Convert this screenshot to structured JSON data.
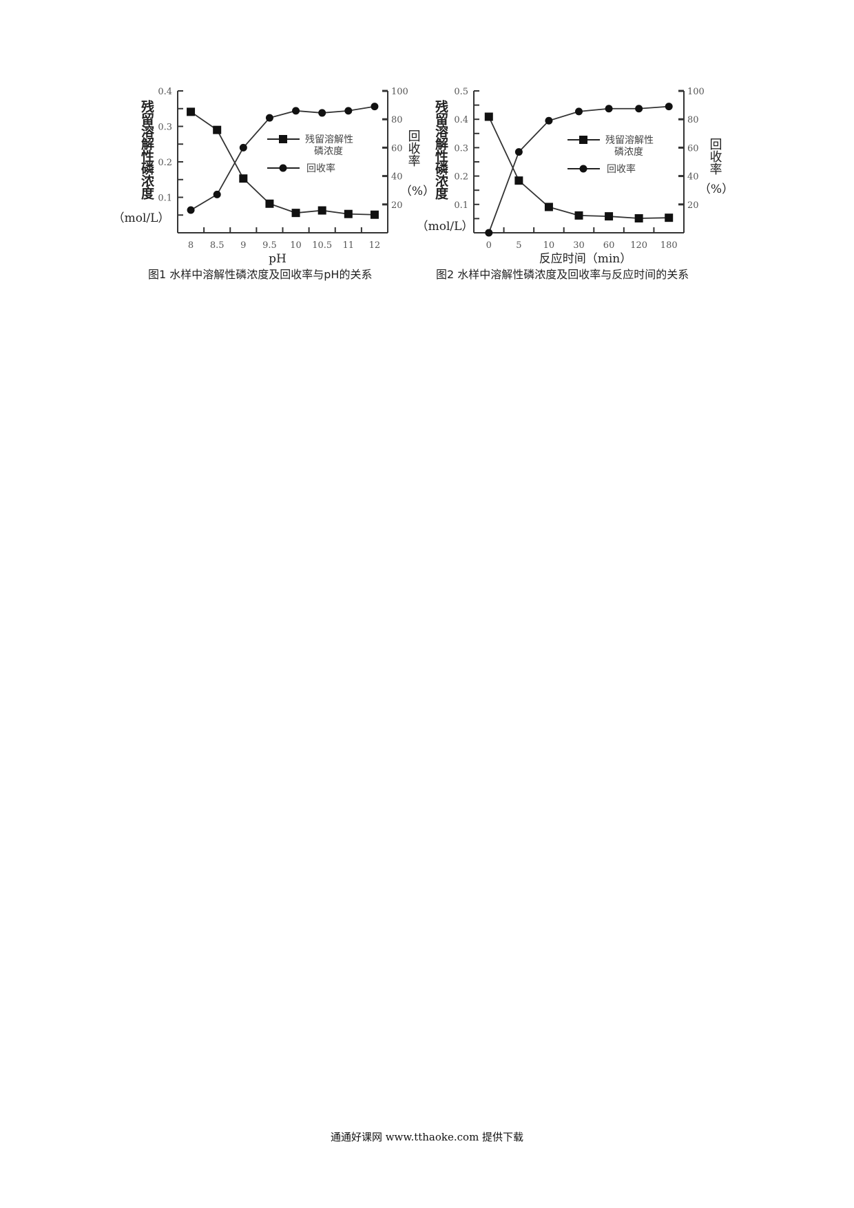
{
  "chart_data": [
    {
      "type": "line",
      "caption": "图1 水样中溶解性磷浓度及回收率与pH的关系",
      "xlabel": "pH",
      "ylabel": "残留溶解性磷浓度",
      "ylabel_unit": "（mol/L）",
      "y2label": "回收率",
      "y2label_unit": "（%）",
      "categories": [
        "8",
        "8.5",
        "9",
        "9.5",
        "10",
        "10.5",
        "11",
        "12"
      ],
      "ylim": [
        0,
        0.4
      ],
      "yticks": [
        "0.1",
        "0.2",
        "0.3",
        "0.4"
      ],
      "y2lim": [
        0,
        100
      ],
      "y2ticks": [
        "20",
        "40",
        "60",
        "80",
        "100"
      ],
      "legend_placement": "center-right",
      "series": [
        {
          "name": "残留溶解性磷浓度",
          "name_line1": "残留溶解性",
          "name_line2": "磷浓度",
          "marker": "square",
          "axis": "left",
          "values": [
            0.341,
            0.29,
            0.153,
            0.082,
            0.056,
            0.063,
            0.053,
            0.051
          ]
        },
        {
          "name": "回收率",
          "marker": "circle",
          "axis": "right",
          "values": [
            16,
            27,
            60,
            81,
            86,
            84.5,
            86,
            89
          ]
        }
      ]
    },
    {
      "type": "line",
      "caption": "图2 水样中溶解性磷浓度及回收率与反应时间的关系",
      "xlabel": "反应时间（min）",
      "ylabel": "残留溶解性磷浓度",
      "ylabel_unit": "（mol/L）",
      "y2label": "回收率",
      "y2label_unit": "（%）",
      "categories": [
        "0",
        "5",
        "10",
        "30",
        "60",
        "120",
        "180"
      ],
      "ylim": [
        0,
        0.5
      ],
      "yticks": [
        "0.1",
        "0.2",
        "0.3",
        "0.4",
        "0.5"
      ],
      "y2lim": [
        0,
        100
      ],
      "y2ticks": [
        "20",
        "40",
        "60",
        "80",
        "100"
      ],
      "legend_placement": "center-right",
      "series": [
        {
          "name": "残留溶解性磷浓度",
          "name_line1": "残留溶解性",
          "name_line2": "磷浓度",
          "marker": "square",
          "axis": "left",
          "values": [
            0.409,
            0.184,
            0.091,
            0.061,
            0.058,
            0.051,
            0.053
          ]
        },
        {
          "name": "回收率",
          "marker": "circle",
          "axis": "right",
          "values": [
            0,
            57,
            79,
            85.5,
            87.5,
            87.5,
            89
          ]
        }
      ]
    }
  ],
  "footer": "通通好课网  www.tthaoke.com  提供下载"
}
